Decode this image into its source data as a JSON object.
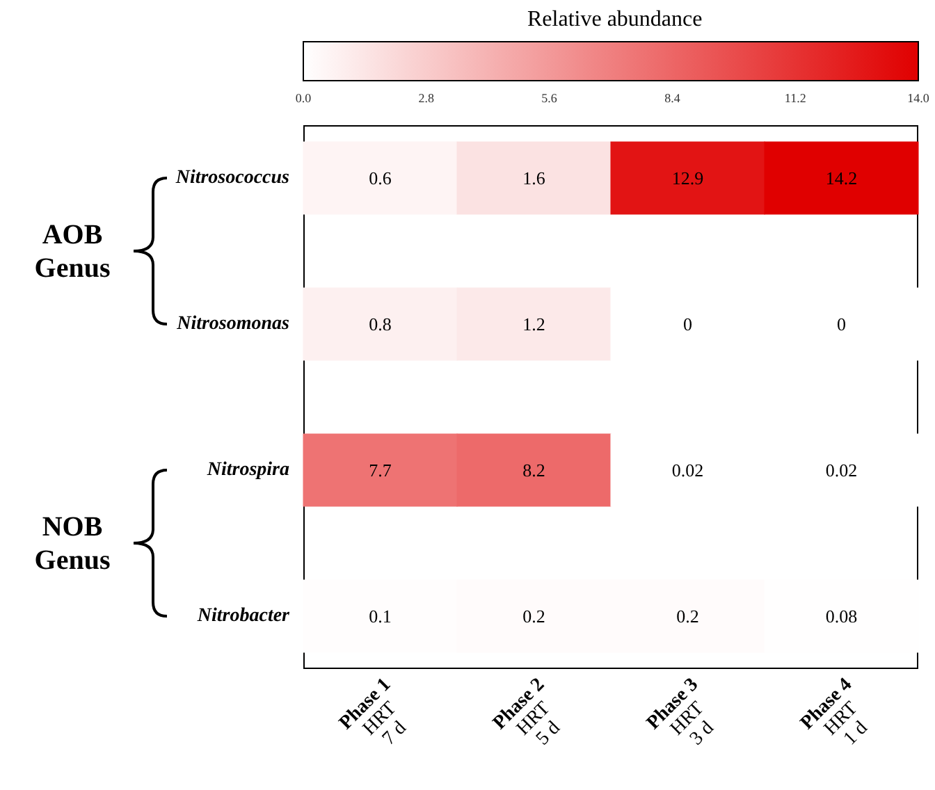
{
  "chart_data": [
    {
      "type": "heatmap",
      "clabel": "Relative abundance",
      "categories": [
        null,
        null,
        null,
        null
      ],
      "y_categories": [
        "Nitrosococcus"
      ],
      "cells": [
        [
          0.6,
          1.6,
          12.9,
          14.2
        ]
      ],
      "data_labels": true,
      "clim": [
        0,
        14
      ],
      "cticks": [
        {
          "value": 0,
          "label": "0.0"
        },
        {
          "value": 2.8,
          "label": "2.8"
        },
        {
          "value": 5.6,
          "label": "5.6"
        },
        {
          "value": 8.4,
          "label": "8.4"
        },
        {
          "value": 11.2,
          "label": "11.2"
        },
        {
          "value": 14,
          "label": "14.0"
        }
      ],
      "colors": [
        "#ffffff",
        "#e00000"
      ],
      "tick_labels": "y",
      "annotations": [
        "AOB\nGenus"
      ]
    },
    {
      "type": "heatmap",
      "categories": [
        null,
        null,
        null,
        null
      ],
      "y_categories": [
        "Nitrosomonas"
      ],
      "cells": [
        [
          0.8,
          1.2,
          0,
          0
        ]
      ],
      "data_labels": true,
      "tick_labels": "y"
    },
    {
      "type": "heatmap",
      "categories": [
        null,
        null,
        null,
        null
      ],
      "y_categories": [
        "Nitrospira"
      ],
      "cells": [
        [
          7.7,
          8.2,
          0.02,
          0.02
        ]
      ],
      "data_labels": true,
      "tick_labels": "y",
      "annotations": [
        "NOB\nGenus"
      ]
    },
    {
      "type": "heatmap",
      "categories": [
        "Phase 1\nHRT\n7 d",
        "Phase 2\nHRT\n5 d",
        "Phase 3\nHRT\n3 d",
        "Phase 4\nHRT\n1 d"
      ],
      "y_categories": [
        "Nitrobacter"
      ],
      "cells": [
        [
          0.1,
          0.2,
          0.2,
          0.08
        ]
      ],
      "data_labels": true
    }
  ]
}
